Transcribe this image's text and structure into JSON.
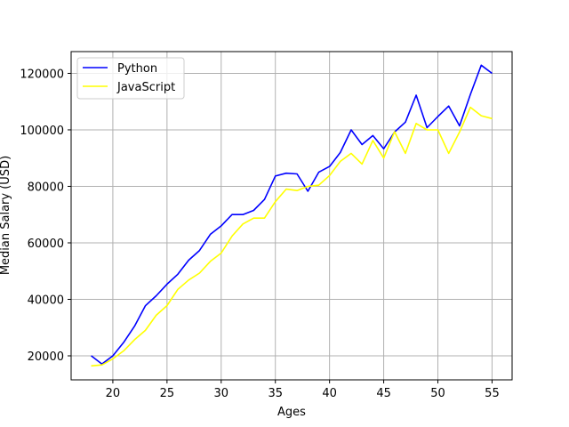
{
  "chart_data": {
    "type": "line",
    "title": "",
    "xlabel": "Ages",
    "ylabel": "Median Salary (USD)",
    "xlim": [
      16.15,
      56.85
    ],
    "ylim": [
      11500,
      127700
    ],
    "xticks": [
      20,
      25,
      30,
      35,
      40,
      45,
      50,
      55
    ],
    "yticks": [
      20000,
      40000,
      60000,
      80000,
      100000,
      120000
    ],
    "grid": true,
    "legend_position": "top-left",
    "x": [
      18,
      19,
      20,
      21,
      22,
      23,
      24,
      25,
      26,
      27,
      28,
      29,
      30,
      31,
      32,
      33,
      34,
      35,
      36,
      37,
      38,
      39,
      40,
      41,
      42,
      43,
      44,
      45,
      46,
      47,
      48,
      49,
      50,
      51,
      52,
      53,
      54,
      55
    ],
    "series": [
      {
        "name": "Python",
        "color": "#0000ff",
        "values": [
          20046,
          17100,
          20000,
          24744,
          30500,
          37732,
          41247,
          45372,
          48876,
          53850,
          57287,
          63016,
          65998,
          70003,
          70000,
          71496,
          75370,
          83640,
          84666,
          84392,
          78254,
          85000,
          87038,
          91991,
          100000,
          94796,
          97962,
          93302,
          99240,
          102736,
          112285,
          100771,
          104708,
          108423,
          101407,
          112542,
          122870,
          120000
        ]
      },
      {
        "name": "JavaScript",
        "color": "#ffff00",
        "values": [
          16446,
          16791,
          18942,
          21780,
          25704,
          29000,
          34372,
          37810,
          43515,
          46823,
          49293,
          53437,
          56373,
          62375,
          66674,
          68745,
          68746,
          74583,
          79000,
          78508,
          79996,
          80403,
          83820,
          88833,
          91660,
          87892,
          96243,
          90000,
          99313,
          91660,
          102264,
          100000,
          100000,
          91660,
          99240,
          108000,
          105000,
          104000
        ]
      }
    ]
  }
}
